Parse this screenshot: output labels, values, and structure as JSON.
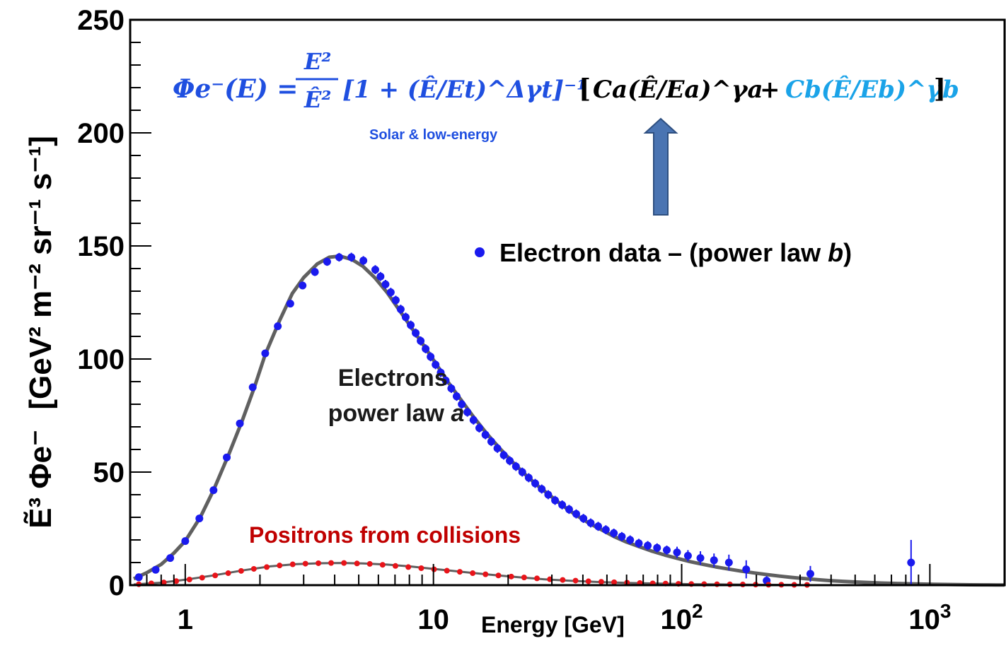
{
  "chart_data": {
    "type": "scatter",
    "xlabel": "Energy [GeV]",
    "ylabel": "[GeV² m⁻² sr⁻¹ s⁻¹]",
    "ylabel_symbol": "Ẽ³ Φe⁻",
    "x_scale": "log",
    "xlim": [
      0.6,
      2000
    ],
    "ylim": [
      0,
      250
    ],
    "x_tick_labels": [
      {
        "value": 1,
        "label": "1"
      },
      {
        "value": 10,
        "label": "10"
      },
      {
        "value": 100,
        "label": "10",
        "exp": "2"
      },
      {
        "value": 1000,
        "label": "10",
        "exp": "3"
      }
    ],
    "y_ticks": [
      0,
      50,
      100,
      150,
      200,
      250
    ],
    "y_tick_labels": [
      "0",
      "50",
      "100",
      "150",
      "200",
      "250"
    ],
    "series": [
      {
        "name": "Electron data",
        "kind": "points",
        "color": "#1a1aee",
        "x": [
          0.65,
          0.76,
          0.87,
          1.0,
          1.14,
          1.3,
          1.47,
          1.66,
          1.87,
          2.1,
          2.36,
          2.65,
          2.97,
          3.33,
          3.73,
          4.17,
          4.67,
          5.22,
          5.83,
          6.12,
          6.41,
          6.73,
          7.05,
          7.38,
          7.73,
          8.1,
          8.48,
          8.88,
          9.3,
          9.74,
          10.2,
          10.7,
          11.2,
          11.8,
          12.4,
          13.0,
          13.7,
          14.5,
          15.3,
          16.2,
          17.1,
          18.1,
          19.2,
          20.3,
          21.5,
          22.8,
          24.2,
          25.7,
          27.3,
          29.0,
          30.9,
          33.0,
          35.2,
          37.6,
          40.2,
          43.0,
          46.1,
          49.5,
          53.3,
          57.4,
          62.0,
          67.2,
          73.0,
          79.6,
          87.1,
          95.8,
          106,
          119,
          135,
          155,
          182,
          220,
          330,
          840
        ],
        "y": [
          3.5,
          6.8,
          12,
          19.5,
          29.5,
          42,
          56.5,
          71.5,
          87.5,
          102.5,
          114.5,
          124.5,
          132.5,
          138.5,
          143,
          145,
          145,
          143.5,
          139.5,
          136.5,
          133,
          129.5,
          126,
          122,
          118.5,
          115,
          111.5,
          108,
          104.5,
          101,
          97.5,
          94,
          90.5,
          87,
          83.5,
          80,
          76.5,
          73,
          69.5,
          66.5,
          63.5,
          60.5,
          57.5,
          55,
          52.5,
          50,
          47.5,
          45,
          42.5,
          40,
          37.5,
          35.5,
          33.5,
          31.5,
          29.5,
          27.5,
          26,
          24.5,
          23,
          21.5,
          20,
          18.5,
          17.5,
          16.5,
          15.5,
          14.5,
          13,
          12,
          11,
          10,
          7,
          2,
          5,
          10
        ],
        "err": [
          0.6,
          0.6,
          0.8,
          0.9,
          1,
          1,
          1.2,
          1.2,
          1.3,
          1.5,
          1.5,
          1.6,
          1.7,
          1.8,
          1.8,
          1.9,
          2,
          2,
          2,
          2,
          2,
          2,
          2,
          2,
          2,
          2,
          2,
          2,
          2,
          2,
          2,
          2,
          2,
          2,
          2,
          2,
          2,
          2,
          2,
          2,
          2,
          2,
          2,
          2,
          2,
          2,
          2,
          2,
          2,
          2,
          2,
          2,
          2,
          2,
          2,
          2,
          2,
          2,
          2,
          2,
          2,
          2,
          2,
          2,
          2,
          2.5,
          2.5,
          3,
          3,
          3.5,
          4,
          2,
          3.5,
          10
        ]
      },
      {
        "name": "Positrons from collisions",
        "kind": "points",
        "color": "#e8141a",
        "x": [
          0.65,
          0.73,
          0.82,
          0.92,
          1.04,
          1.17,
          1.32,
          1.49,
          1.68,
          1.89,
          2.13,
          2.4,
          2.71,
          3.05,
          3.44,
          3.87,
          4.36,
          4.92,
          5.54,
          6.24,
          7.03,
          7.92,
          8.93,
          10.06,
          11.33,
          12.77,
          14.39,
          16.21,
          18.27,
          20.58,
          23.19,
          26.13,
          29.44,
          33.17,
          37.37,
          42.11,
          47.44,
          53.45,
          60.23,
          67.86,
          76.46,
          86.14,
          97.06,
          109.4,
          123.2,
          138.8,
          156.4,
          176.3,
          198.6,
          223.8,
          252.1,
          284.1,
          320.1
        ],
        "y": [
          0.4,
          0.8,
          1.2,
          1.8,
          2.5,
          3.3,
          4.3,
          5.3,
          6.3,
          7.2,
          8.0,
          8.7,
          9.2,
          9.5,
          9.7,
          9.8,
          9.8,
          9.6,
          9.4,
          9.0,
          8.5,
          8.0,
          7.5,
          7.0,
          6.4,
          5.9,
          5.3,
          4.8,
          4.3,
          3.8,
          3.4,
          3.0,
          2.6,
          2.3,
          2.0,
          1.7,
          1.5,
          1.3,
          1.1,
          0.95,
          0.8,
          0.7,
          0.6,
          0.5,
          0.45,
          0.4,
          0.35,
          0.3,
          0.25,
          0.2,
          0.18,
          0.15,
          0.12
        ]
      },
      {
        "name": "electron fit",
        "kind": "curve",
        "color": "#606060",
        "x": [
          0.62,
          0.7,
          0.8,
          0.9,
          1.0,
          1.15,
          1.3,
          1.5,
          1.7,
          1.9,
          2.1,
          2.4,
          2.7,
          3.0,
          3.4,
          3.8,
          4.2,
          4.7,
          5.2,
          5.8,
          6.5,
          7.3,
          8.2,
          9.2,
          10.3,
          11.5,
          13.0,
          14.6,
          16.4,
          18.5,
          20.8,
          23.4,
          26.3,
          29.6,
          33.3,
          37.5,
          42.2,
          47.5,
          53.4,
          60.1,
          67.6,
          76.1,
          85.6,
          96.3,
          108,
          122,
          137,
          155,
          174,
          196,
          220,
          248,
          279,
          314,
          353,
          397,
          447,
          503,
          566,
          637,
          717,
          807,
          908,
          1022,
          1150,
          1294,
          1456,
          1639,
          1844,
          2000
        ],
        "y": [
          2.8,
          5.5,
          9.2,
          14.2,
          19.5,
          30,
          42,
          58,
          73,
          87.5,
          102,
          117,
          129,
          136,
          142,
          145,
          145.5,
          144,
          141,
          136,
          129.5,
          121.5,
          113.5,
          105.5,
          97.5,
          89.5,
          81.5,
          74,
          67,
          60.5,
          54.5,
          49,
          44,
          39.5,
          35,
          31,
          27.5,
          24.5,
          21.5,
          19,
          17,
          15,
          13.3,
          11.8,
          10.4,
          9.2,
          8.1,
          7.1,
          6.2,
          5.4,
          4.7,
          4.0,
          3.4,
          2.9,
          2.4,
          2.0,
          1.7,
          1.4,
          1.15,
          0.95,
          0.78,
          0.62,
          0.5,
          0.4,
          0.3,
          0.22,
          0.16,
          0.12,
          0.08,
          0.06
        ]
      },
      {
        "name": "positron fit",
        "kind": "curve",
        "color": "#606060",
        "x": [
          0.62,
          0.8,
          1.0,
          1.3,
          1.7,
          2.2,
          2.8,
          3.5,
          4.3,
          5.2,
          6.5,
          8.0,
          10,
          13,
          17,
          22,
          28,
          36,
          46,
          60,
          80,
          110,
          150,
          200,
          300
        ],
        "y": [
          0.3,
          1.1,
          2.4,
          4.3,
          6.5,
          8.3,
          9.3,
          9.7,
          9.8,
          9.6,
          9.1,
          8.3,
          7.2,
          5.9,
          4.6,
          3.5,
          2.6,
          1.9,
          1.4,
          1.0,
          0.7,
          0.45,
          0.3,
          0.2,
          0.12
        ]
      }
    ],
    "annotations": {
      "legend_label": "Electron data – (power law ",
      "legend_label_italic": "b",
      "legend_label_end": ")",
      "electrons_line1": "Electrons",
      "electrons_line2": "power law ",
      "electrons_line2_italic": "a",
      "positrons": "Positrons from collisions",
      "solar": "Solar & low-energy",
      "formula": {
        "lhs": "Φe⁻(E) =",
        "frac_num": "E²",
        "frac_den": "Ê²",
        "solar_term": "[1 + (Ê/Et)^Δγt]⁻¹",
        "term_a": "Ca(Ê/Ea)^γa",
        "plus": "+",
        "term_b": "Cb(Ê/Eb)^γb"
      }
    },
    "colors": {
      "electron": "#1a1aee",
      "positron": "#e8141a",
      "fit": "#606060",
      "formula_blue": "#1f4fe0",
      "formula_cyan": "#1aa3e8",
      "arrow_fill": "#4a74b2",
      "arrow_stroke": "#2e4f80",
      "positron_label": "#c00000",
      "solar_label": "#1f4fe0"
    }
  }
}
